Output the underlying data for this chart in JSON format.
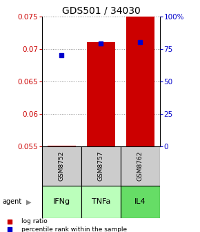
{
  "title": "GDS501 / 34030",
  "samples": [
    "GSM8752",
    "GSM8757",
    "GSM8762"
  ],
  "agents": [
    "IFNg",
    "TNFa",
    "IL4"
  ],
  "log_ratio": [
    0.0551,
    0.071,
    0.075
  ],
  "log_ratio_base": 0.055,
  "percentile_rank": [
    70,
    79,
    80
  ],
  "ylim_left": [
    0.055,
    0.075
  ],
  "ylim_right": [
    0,
    100
  ],
  "yticks_left": [
    0.055,
    0.06,
    0.065,
    0.07,
    0.075
  ],
  "yticks_right": [
    0,
    25,
    50,
    75,
    100
  ],
  "ytick_labels_right": [
    "0",
    "25",
    "50",
    "75",
    "100%"
  ],
  "bar_color": "#cc0000",
  "dot_color": "#0000cc",
  "sample_box_color": "#cccccc",
  "agent_colors": [
    "#bbffbb",
    "#bbffbb",
    "#66dd66"
  ],
  "grid_color": "#888888",
  "left_tick_color": "#cc0000",
  "right_tick_color": "#0000cc",
  "title_fontsize": 10,
  "tick_fontsize": 7.5,
  "label_fontsize": 8
}
